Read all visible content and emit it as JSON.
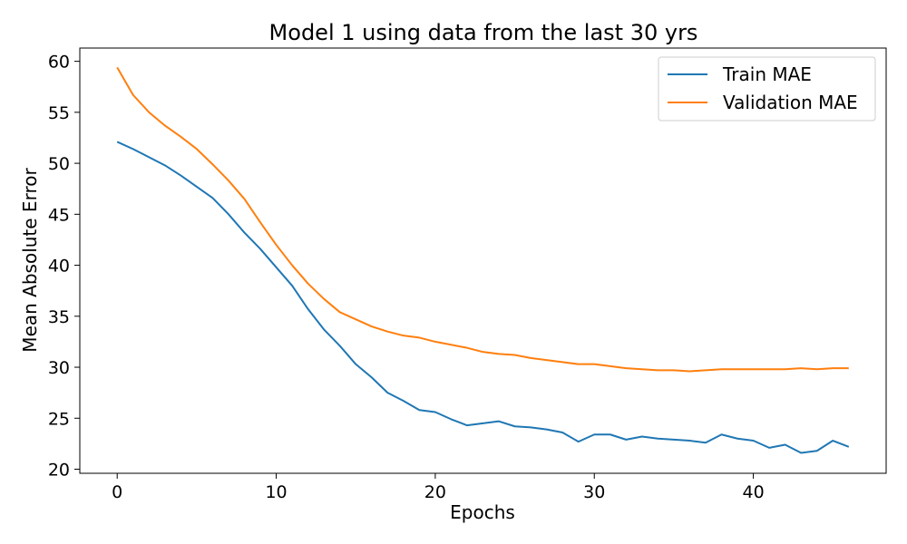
{
  "chart_data": {
    "type": "line",
    "title": "Model 1 using data from the last 30 yrs",
    "xlabel": "Epochs",
    "ylabel": "Mean Absolute Error",
    "xlim": [
      -2.35,
      48.35
    ],
    "ylim": [
      19.6,
      61.3
    ],
    "xticks": [
      0,
      10,
      20,
      30,
      40
    ],
    "xtick_labels": [
      "0",
      "10",
      "20",
      "30",
      "40"
    ],
    "yticks": [
      20,
      25,
      30,
      35,
      40,
      45,
      50,
      55,
      60
    ],
    "ytick_labels": [
      "20",
      "25",
      "30",
      "35",
      "40",
      "45",
      "50",
      "55",
      "60"
    ],
    "grid": false,
    "legend_position": "top-right",
    "x": [
      0,
      1,
      2,
      3,
      4,
      5,
      6,
      7,
      8,
      9,
      10,
      11,
      12,
      13,
      14,
      15,
      16,
      17,
      18,
      19,
      20,
      21,
      22,
      23,
      24,
      25,
      26,
      27,
      28,
      29,
      30,
      31,
      32,
      33,
      34,
      35,
      36,
      37,
      38,
      39,
      40,
      41,
      42,
      43,
      44,
      45,
      46
    ],
    "series": [
      {
        "name": "Train MAE",
        "color": "#1f77b4",
        "values": [
          52.1,
          51.4,
          50.6,
          49.8,
          48.8,
          47.7,
          46.6,
          45.0,
          43.2,
          41.6,
          39.8,
          38.0,
          35.7,
          33.7,
          32.1,
          30.3,
          29.0,
          27.5,
          26.7,
          25.8,
          25.6,
          24.9,
          24.3,
          24.5,
          24.7,
          24.2,
          24.1,
          23.9,
          23.6,
          22.7,
          23.4,
          23.4,
          22.9,
          23.2,
          23.0,
          22.9,
          22.8,
          22.6,
          23.4,
          23.0,
          22.8,
          22.1,
          22.4,
          21.6,
          21.8,
          22.8,
          22.2
        ]
      },
      {
        "name": "Validation MAE",
        "color": "#ff7f0e",
        "values": [
          59.4,
          56.7,
          55.0,
          53.7,
          52.6,
          51.4,
          49.9,
          48.3,
          46.5,
          44.2,
          42.0,
          40.0,
          38.2,
          36.7,
          35.4,
          34.7,
          34.0,
          33.5,
          33.1,
          32.9,
          32.5,
          32.2,
          31.9,
          31.5,
          31.3,
          31.2,
          30.9,
          30.7,
          30.5,
          30.3,
          30.3,
          30.1,
          29.9,
          29.8,
          29.7,
          29.7,
          29.6,
          29.7,
          29.8,
          29.8,
          29.8,
          29.8,
          29.8,
          29.9,
          29.8,
          29.9,
          29.9
        ]
      }
    ]
  }
}
